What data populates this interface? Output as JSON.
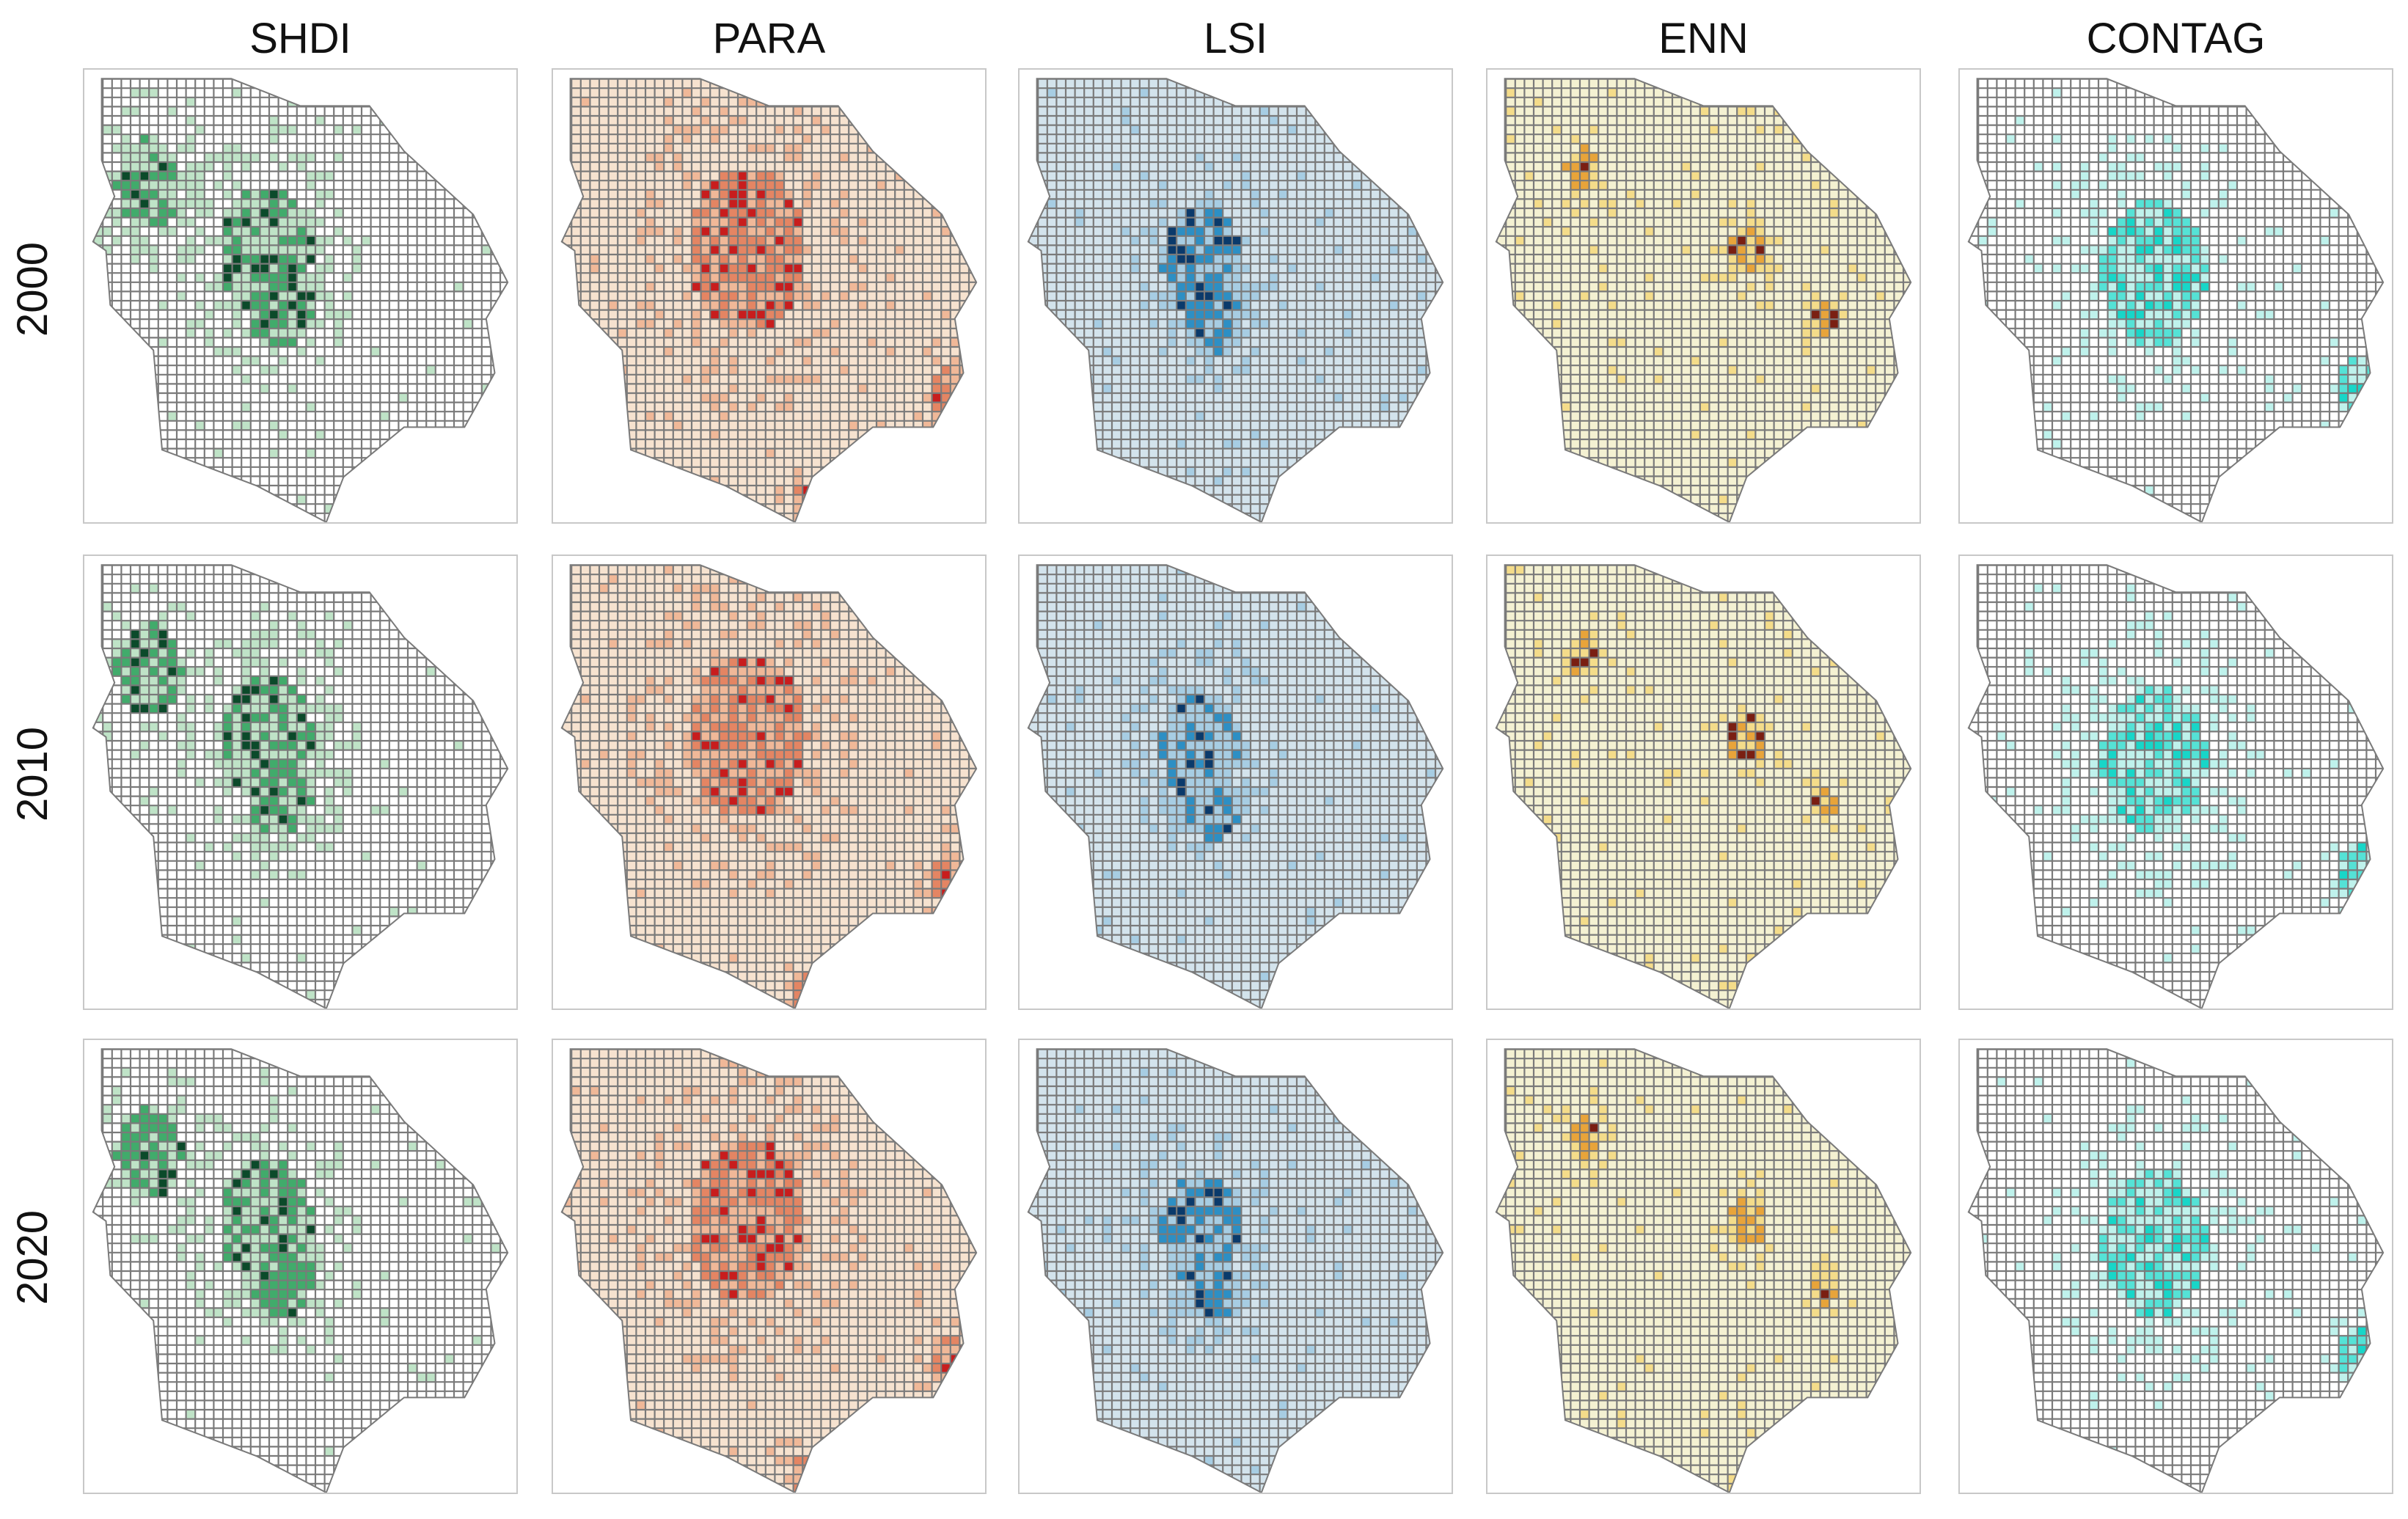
{
  "columns": [
    {
      "key": "shdi",
      "label": "SHDI",
      "base": "#ffffff",
      "low": "#bfe3c7",
      "mid": "#41ab6b",
      "high": "#0b4a2a"
    },
    {
      "key": "para",
      "label": "PARA",
      "base": "#f6e2cf",
      "low": "#f0b898",
      "mid": "#e48563",
      "high": "#c81d1d"
    },
    {
      "key": "lsi",
      "label": "LSI",
      "base": "#d3e3ec",
      "low": "#a7cde3",
      "mid": "#2d8fc4",
      "high": "#0a3a6b"
    },
    {
      "key": "enn",
      "label": "ENN",
      "base": "#f4f1d2",
      "low": "#f4dc8a",
      "mid": "#e8a43a",
      "high": "#7a1f12"
    },
    {
      "key": "contag",
      "label": "CONTAG",
      "base": "#ffffff",
      "low": "#bff2ec",
      "mid": "#55e2d6",
      "high": "#18d6c8"
    }
  ],
  "rows": [
    {
      "key": "2000",
      "label": "2000"
    },
    {
      "key": "2010",
      "label": "2010"
    },
    {
      "key": "2020",
      "label": "2020"
    }
  ],
  "grid_color": "#7a7a7a"
}
